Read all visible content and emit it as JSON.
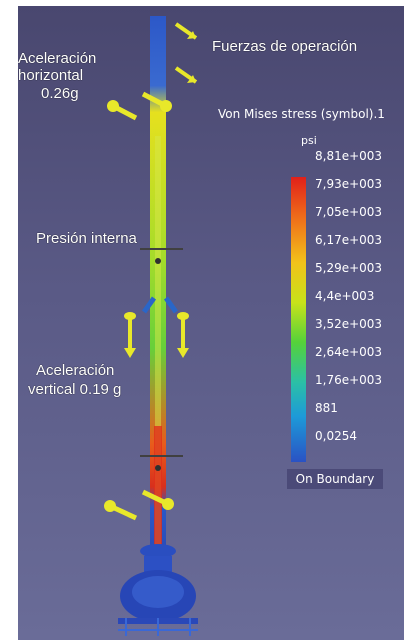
{
  "annotations": {
    "operation_forces": "Fuerzas de operación",
    "horizontal_accel_line1": "Aceleración",
    "horizontal_accel_line2": "horizontal",
    "horizontal_accel_value": "0.26g",
    "internal_pressure": "Presión interna",
    "vertical_accel_line1": "Aceleración",
    "vertical_accel_line2": "vertical 0.19 g"
  },
  "legend": {
    "title": "Von Mises stress (symbol).1",
    "unit": "psi",
    "ticks": [
      "8,81e+003",
      "7,93e+003",
      "7,05e+003",
      "6,17e+003",
      "5,29e+003",
      "4,4e+003",
      "3,52e+003",
      "2,64e+003",
      "1,76e+003",
      "881",
      "0,0254"
    ],
    "status": "On Boundary",
    "colors": [
      "#e0201a",
      "#ef6c1a",
      "#f2c21a",
      "#c8e21a",
      "#55d23a",
      "#2bc0a6",
      "#1d9ad8",
      "#2a52c4"
    ]
  }
}
